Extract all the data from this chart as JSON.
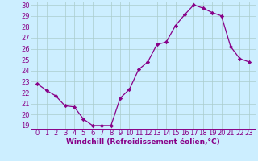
{
  "x": [
    0,
    1,
    2,
    3,
    4,
    5,
    6,
    7,
    8,
    9,
    10,
    11,
    12,
    13,
    14,
    15,
    16,
    17,
    18,
    19,
    20,
    21,
    22,
    23
  ],
  "y": [
    22.8,
    22.2,
    21.7,
    20.8,
    20.7,
    19.6,
    19.0,
    19.0,
    19.0,
    21.5,
    22.3,
    24.1,
    24.8,
    26.4,
    26.6,
    28.1,
    29.1,
    30.0,
    29.7,
    29.3,
    29.0,
    26.2,
    25.1,
    24.8
  ],
  "xlabel": "Windchill (Refroidissement éolien,°C)",
  "ylim": [
    18.7,
    30.3
  ],
  "yticks": [
    19,
    20,
    21,
    22,
    23,
    24,
    25,
    26,
    27,
    28,
    29,
    30
  ],
  "xticks": [
    0,
    1,
    2,
    3,
    4,
    5,
    6,
    7,
    8,
    9,
    10,
    11,
    12,
    13,
    14,
    15,
    16,
    17,
    18,
    19,
    20,
    21,
    22,
    23
  ],
  "line_color": "#880088",
  "marker": "D",
  "marker_size": 2.2,
  "bg_color": "#cceeff",
  "grid_color": "#aacccc",
  "xlabel_color": "#880088",
  "tick_color": "#880088",
  "tick_fontsize": 6.0,
  "xlabel_fontsize": 6.5
}
